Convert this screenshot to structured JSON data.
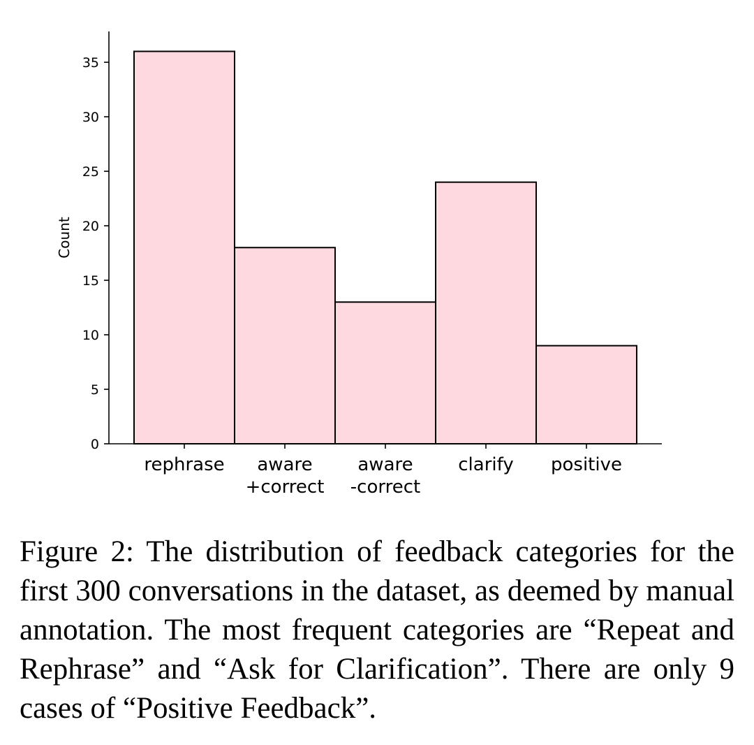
{
  "chart_data": {
    "type": "bar",
    "categories": [
      [
        "rephrase"
      ],
      [
        "aware",
        "+correct"
      ],
      [
        "aware",
        "-correct"
      ],
      [
        "clarify"
      ],
      [
        "positive"
      ]
    ],
    "values": [
      36,
      18,
      13,
      24,
      9
    ],
    "ylabel": "Count",
    "yticks": [
      0,
      5,
      10,
      15,
      20,
      25,
      30,
      35
    ],
    "ylim": [
      0,
      38
    ],
    "bar_fill": "#ffd9e0",
    "bar_edge": "#000000",
    "grid": false,
    "legend": "none"
  },
  "caption": "Figure 2: The distribution of feedback categories for the first 300 conversations in the dataset, as deemed by manual annotation. The most frequent categories are “Repeat and Rephrase” and “Ask for Clarification”. There are only 9 cases of “Positive Feedback”."
}
